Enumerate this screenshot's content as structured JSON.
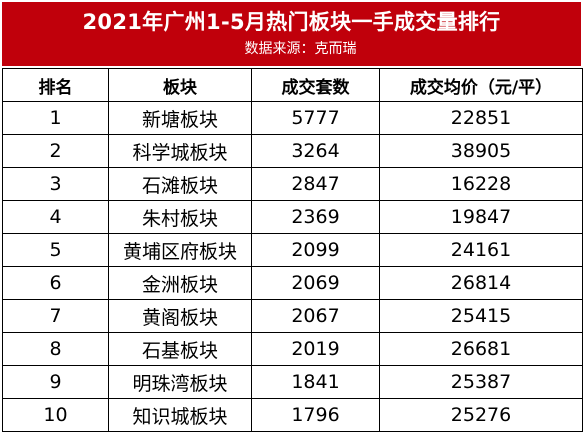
{
  "header": {
    "title": "2021年广州1-5月热门板块一手成交量排行",
    "source": "数据来源：克而瑞"
  },
  "table": {
    "columns": {
      "rank": "排名",
      "block": "板块",
      "count": "成交套数",
      "price": "成交均价（元/平）"
    },
    "rows": [
      {
        "rank": "1",
        "block": "新塘板块",
        "count": "5777",
        "price": "22851"
      },
      {
        "rank": "2",
        "block": "科学城板块",
        "count": "3264",
        "price": "38905"
      },
      {
        "rank": "3",
        "block": "石滩板块",
        "count": "2847",
        "price": "16228"
      },
      {
        "rank": "4",
        "block": "朱村板块",
        "count": "2369",
        "price": "19847"
      },
      {
        "rank": "5",
        "block": "黄埔区府板块",
        "count": "2099",
        "price": "24161"
      },
      {
        "rank": "6",
        "block": "金洲板块",
        "count": "2069",
        "price": "26814"
      },
      {
        "rank": "7",
        "block": "黄阁板块",
        "count": "2067",
        "price": "25415"
      },
      {
        "rank": "8",
        "block": "石基板块",
        "count": "2019",
        "price": "26681"
      },
      {
        "rank": "9",
        "block": "明珠湾板块",
        "count": "1841",
        "price": "25387"
      },
      {
        "rank": "10",
        "block": "知识城板块",
        "count": "1796",
        "price": "25276"
      }
    ]
  }
}
